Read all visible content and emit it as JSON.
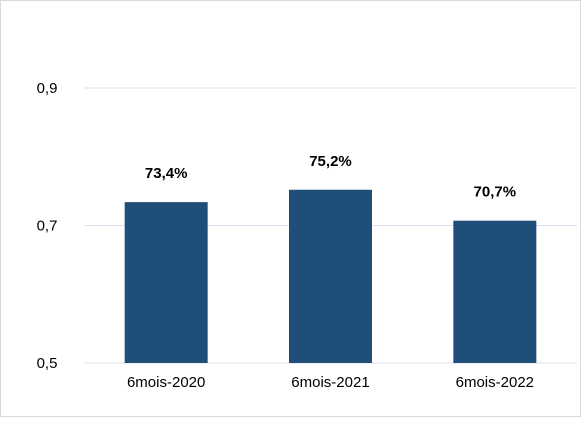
{
  "chart_data": {
    "type": "bar",
    "title": "",
    "xlabel": "",
    "ylabel": "",
    "categories": [
      "6mois-2020",
      "6mois-2021",
      "6mois-2022"
    ],
    "values": [
      0.734,
      0.752,
      0.707
    ],
    "data_labels": [
      "73,4%",
      "75,2%",
      "70,7%"
    ],
    "ylim": [
      0.5,
      0.9
    ],
    "yticks": [
      0.5,
      0.7,
      0.9
    ],
    "ytick_labels": [
      "0,5",
      "0,7",
      "0,9"
    ],
    "grid": true,
    "legend": "none",
    "bar_color": "#1f4e79",
    "grid_color": "#d9e2ee"
  }
}
